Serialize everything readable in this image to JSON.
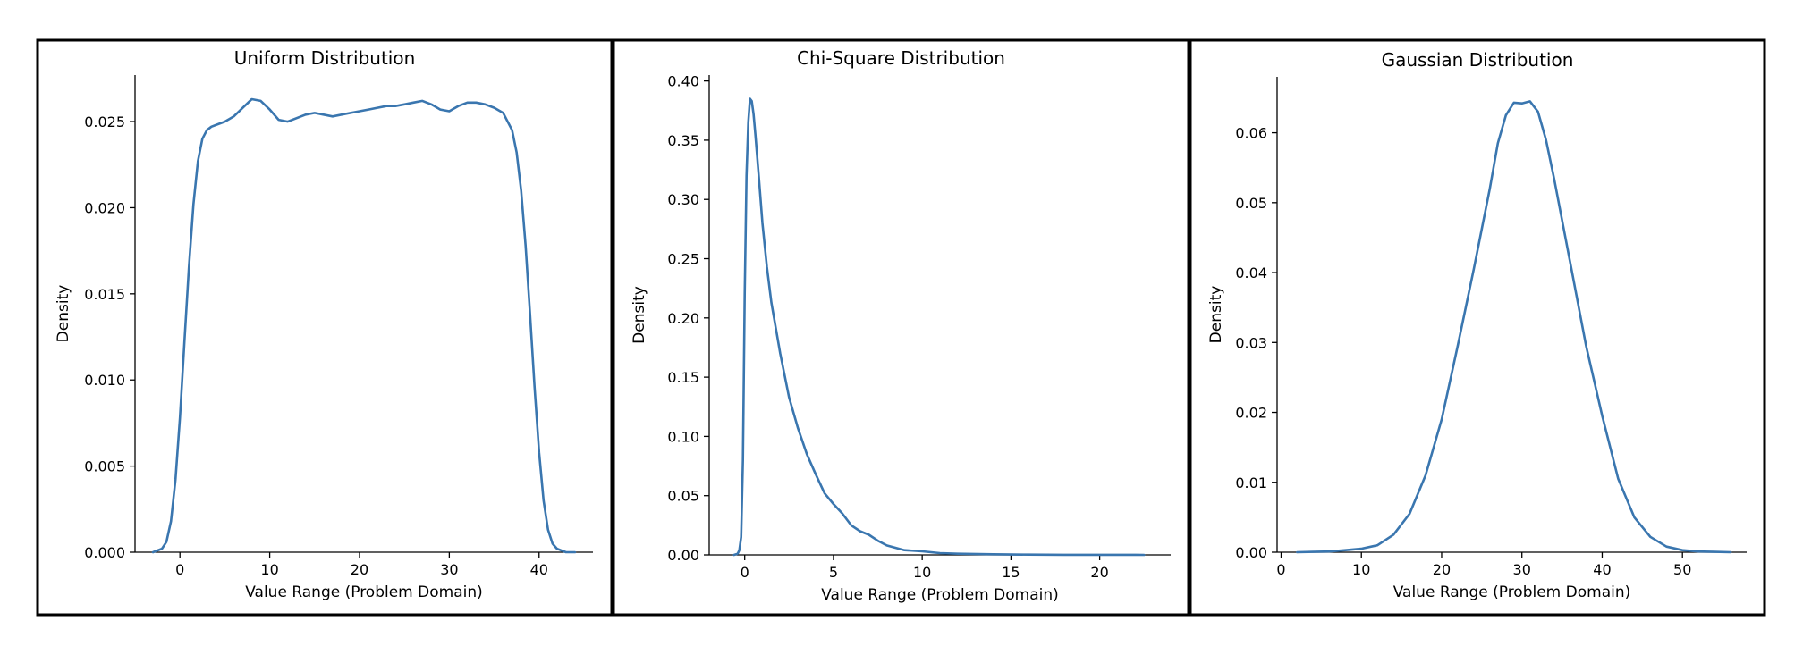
{
  "figure": {
    "line_color": "#3a76af",
    "frame_color": "#000000"
  },
  "chart_data": [
    {
      "type": "line",
      "title": "Uniform Distribution",
      "xlabel": "Value Range (Problem Domain)",
      "ylabel": "Density",
      "xlim": [
        -5,
        46
      ],
      "ylim": [
        0,
        0.0277
      ],
      "xticks": [
        0,
        10,
        20,
        30,
        40
      ],
      "xticklabels": [
        "0",
        "10",
        "20",
        "30",
        "40"
      ],
      "yticks": [
        0,
        0.005,
        0.01,
        0.015,
        0.02,
        0.025
      ],
      "yticklabels": [
        "0.000",
        "0.005",
        "0.010",
        "0.015",
        "0.020",
        "0.025"
      ],
      "grid": false,
      "series": [
        {
          "x": [
            -3,
            -2,
            -1.5,
            -1,
            -0.5,
            0,
            0.5,
            1,
            1.5,
            2,
            2.5,
            3,
            3.5,
            4,
            5,
            6,
            7,
            8,
            9,
            10,
            11,
            12,
            13,
            14,
            15,
            16,
            17,
            18,
            19,
            20,
            21,
            22,
            23,
            24,
            25,
            26,
            27,
            28,
            29,
            30,
            31,
            32,
            33,
            34,
            35,
            36,
            37,
            37.5,
            38,
            38.5,
            39,
            39.5,
            40,
            40.5,
            41,
            41.5,
            42,
            42.5,
            43,
            44
          ],
          "y": [
            0,
            0.0002,
            0.0006,
            0.0018,
            0.0042,
            0.0078,
            0.0122,
            0.0165,
            0.0202,
            0.0227,
            0.024,
            0.0245,
            0.0247,
            0.0248,
            0.025,
            0.0253,
            0.0258,
            0.0263,
            0.0262,
            0.0257,
            0.0251,
            0.025,
            0.0252,
            0.0254,
            0.0255,
            0.0254,
            0.0253,
            0.0254,
            0.0255,
            0.0256,
            0.0257,
            0.0258,
            0.0259,
            0.0259,
            0.026,
            0.0261,
            0.0262,
            0.026,
            0.0257,
            0.0256,
            0.0259,
            0.0261,
            0.0261,
            0.026,
            0.0258,
            0.0255,
            0.0245,
            0.0232,
            0.021,
            0.0178,
            0.0138,
            0.0096,
            0.0058,
            0.003,
            0.0013,
            0.0005,
            0.0002,
            0.0001,
            0,
            0
          ]
        }
      ]
    },
    {
      "type": "line",
      "title": "Chi-Square Distribution",
      "xlabel": "Value Range (Problem Domain)",
      "ylabel": "Density",
      "xlim": [
        -2,
        24
      ],
      "ylim": [
        0,
        0.405
      ],
      "xticks": [
        0,
        5,
        10,
        15,
        20
      ],
      "xticklabels": [
        "0",
        "5",
        "10",
        "15",
        "20"
      ],
      "yticks": [
        0,
        0.05,
        0.1,
        0.15,
        0.2,
        0.25,
        0.3,
        0.35,
        0.4
      ],
      "yticklabels": [
        "0.00",
        "0.05",
        "0.10",
        "0.15",
        "0.20",
        "0.25",
        "0.30",
        "0.35",
        "0.40"
      ],
      "grid": false,
      "series": [
        {
          "x": [
            -0.6,
            -0.4,
            -0.3,
            -0.2,
            -0.1,
            0,
            0.1,
            0.2,
            0.3,
            0.4,
            0.5,
            0.6,
            0.8,
            1,
            1.25,
            1.5,
            2,
            2.5,
            3,
            3.5,
            4,
            4.5,
            5,
            5.5,
            6,
            6.5,
            7,
            7.5,
            8,
            9,
            10,
            11,
            12,
            14,
            16,
            18,
            20,
            22.5
          ],
          "y": [
            0,
            0.001,
            0.004,
            0.015,
            0.08,
            0.22,
            0.32,
            0.365,
            0.385,
            0.383,
            0.372,
            0.355,
            0.318,
            0.28,
            0.243,
            0.213,
            0.17,
            0.133,
            0.107,
            0.085,
            0.068,
            0.052,
            0.043,
            0.035,
            0.025,
            0.02,
            0.017,
            0.012,
            0.008,
            0.004,
            0.003,
            0.0015,
            0.001,
            0.0005,
            0.0002,
            0.0001,
            0.0001,
            0
          ]
        }
      ]
    },
    {
      "type": "line",
      "title": "Gaussian Distribution",
      "xlabel": "Value Range (Problem Domain)",
      "ylabel": "Density",
      "xlim": [
        -0.5,
        58
      ],
      "ylim": [
        0,
        0.068
      ],
      "xticks": [
        0,
        10,
        20,
        30,
        40,
        50
      ],
      "xticklabels": [
        "0",
        "10",
        "20",
        "30",
        "40",
        "50"
      ],
      "yticks": [
        0,
        0.01,
        0.02,
        0.03,
        0.04,
        0.05,
        0.06
      ],
      "yticklabels": [
        "0.00",
        "0.01",
        "0.02",
        "0.03",
        "0.04",
        "0.05",
        "0.06"
      ],
      "grid": false,
      "series": [
        {
          "x": [
            2,
            4,
            6,
            8,
            10,
            12,
            14,
            16,
            18,
            20,
            22,
            24,
            26,
            27,
            28,
            29,
            30,
            31,
            32,
            33,
            34,
            36,
            38,
            40,
            42,
            44,
            46,
            48,
            50,
            52,
            54,
            56
          ],
          "y": [
            0,
            5e-05,
            0.0001,
            0.0003,
            0.0005,
            0.001,
            0.0025,
            0.0055,
            0.011,
            0.019,
            0.0295,
            0.0405,
            0.052,
            0.0585,
            0.0625,
            0.0643,
            0.0642,
            0.0645,
            0.063,
            0.059,
            0.0535,
            0.0415,
            0.0295,
            0.0195,
            0.0105,
            0.005,
            0.0022,
            0.0008,
            0.0003,
            0.0001,
            5e-05,
            0
          ]
        }
      ]
    }
  ]
}
